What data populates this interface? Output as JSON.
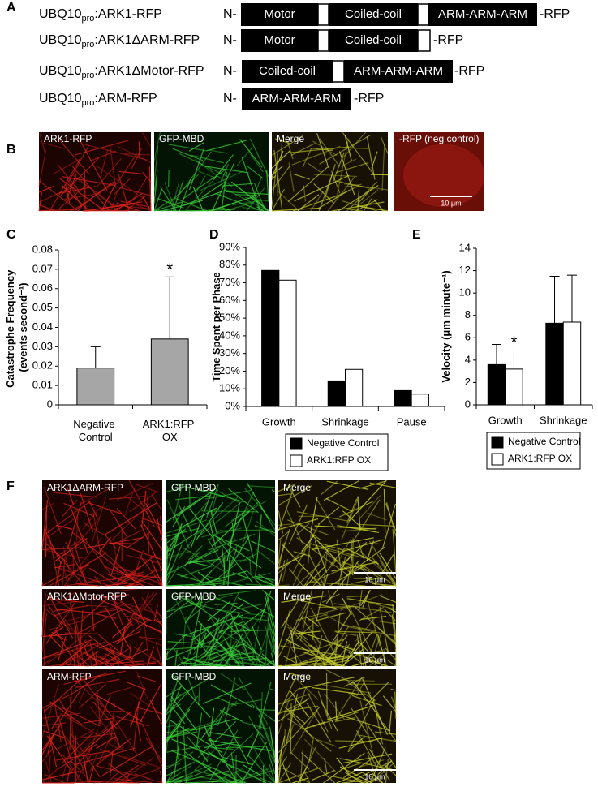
{
  "panel_a": {
    "label": "A",
    "constructs": [
      {
        "name": {
          "prefix": "UBQ10",
          "subscript": "pro",
          "suffix": ":ARK1-RFP"
        },
        "n_terminus": "N-",
        "domains": [
          "Motor",
          "Coiled-coil",
          "ARM-ARM-ARM"
        ],
        "c_terminus": "-RFP"
      },
      {
        "name": {
          "prefix": "UBQ10",
          "subscript": "pro",
          "suffix": ":ARK1ΔARM-RFP"
        },
        "n_terminus": "N-",
        "domains": [
          "Motor",
          "Coiled-coil"
        ],
        "c_terminus": "-RFP"
      },
      {
        "name": {
          "prefix": "UBQ10",
          "subscript": "pro",
          "suffix": ":ARK1ΔMotor-RFP"
        },
        "n_terminus": "N-",
        "domains": [
          "Coiled-coil",
          "ARM-ARM-ARM"
        ],
        "c_terminus": "-RFP"
      },
      {
        "name": {
          "prefix": "UBQ10",
          "subscript": "pro",
          "suffix": ":ARM-RFP"
        },
        "n_terminus": "N-",
        "domains": [
          "ARM-ARM-ARM"
        ],
        "c_terminus": "-RFP"
      }
    ]
  },
  "panel_b": {
    "label": "B",
    "captions": [
      "ARK1-RFP",
      "GFP-MBD",
      "Merge",
      "-RFP (neg control)"
    ],
    "scale_bar": "10 μm"
  },
  "chart_data": [
    {
      "type": "bar",
      "panel_label": "C",
      "ylabel": "Catastrophe Frequency (events second⁻¹)",
      "categories": [
        "Negative Control",
        "ARK1:RFP OX"
      ],
      "values": [
        0.019,
        0.034
      ],
      "errors": [
        0.011,
        0.032
      ],
      "color": "#a6a6a6",
      "ylim": [
        0,
        0.08
      ],
      "yticks": [
        0,
        0.01,
        0.02,
        0.03,
        0.04,
        0.05,
        0.06,
        0.07,
        0.08
      ],
      "grid": false,
      "annotations": [
        {
          "text": "*",
          "category": 1
        }
      ]
    },
    {
      "type": "bar",
      "panel_label": "D",
      "ylabel": "Time Spent per Phase",
      "categories": [
        "Growth",
        "Shrinkage",
        "Pause"
      ],
      "series": [
        {
          "name": "Negative Control",
          "color": "#000000",
          "values": [
            77,
            14.5,
            9
          ]
        },
        {
          "name": "ARK1:RFP OX",
          "color": "#ffffff",
          "values": [
            71.5,
            21,
            7
          ]
        }
      ],
      "ylim": [
        0,
        90
      ],
      "yticks": [
        {
          "value": 0,
          "label": "0%"
        },
        {
          "value": 10,
          "label": "10%"
        },
        {
          "value": 20,
          "label": "20%"
        },
        {
          "value": 30,
          "label": "30%"
        },
        {
          "value": 40,
          "label": "40%"
        },
        {
          "value": 50,
          "label": "50%"
        },
        {
          "value": 60,
          "label": "60%"
        },
        {
          "value": 70,
          "label": "70%"
        },
        {
          "value": 80,
          "label": "80%"
        },
        {
          "value": 90,
          "label": "90%"
        }
      ],
      "grid": false,
      "legend": "bottom"
    },
    {
      "type": "bar",
      "panel_label": "E",
      "ylabel": "Velocity (μm minute⁻¹)",
      "categories": [
        "Growth",
        "Shrinkage"
      ],
      "series": [
        {
          "name": "Negative Control",
          "color": "#000000",
          "values": [
            3.6,
            7.3
          ],
          "errors": [
            1.8,
            4.2
          ]
        },
        {
          "name": "ARK1:RFP OX",
          "color": "#ffffff",
          "values": [
            3.2,
            7.4
          ],
          "errors": [
            1.7,
            4.2
          ]
        }
      ],
      "ylim": [
        0,
        14
      ],
      "yticks": [
        0,
        2,
        4,
        6,
        8,
        10,
        12,
        14
      ],
      "grid": false,
      "legend": "bottom",
      "annotations": [
        {
          "text": "*",
          "category": 0,
          "series": 1
        }
      ]
    }
  ],
  "panel_f": {
    "label": "F",
    "rows": [
      {
        "captions": [
          "ARK1ΔARM-RFP",
          "GFP-MBD",
          "Merge"
        ],
        "scale_bar": "10 μm"
      },
      {
        "captions": [
          "ARK1ΔMotor-RFP",
          "GFP-MBD",
          "Merge"
        ],
        "scale_bar": "10 μm"
      },
      {
        "captions": [
          "ARM-RFP",
          "GFP-MBD",
          "Merge"
        ],
        "scale_bar": "10 μm"
      }
    ]
  }
}
